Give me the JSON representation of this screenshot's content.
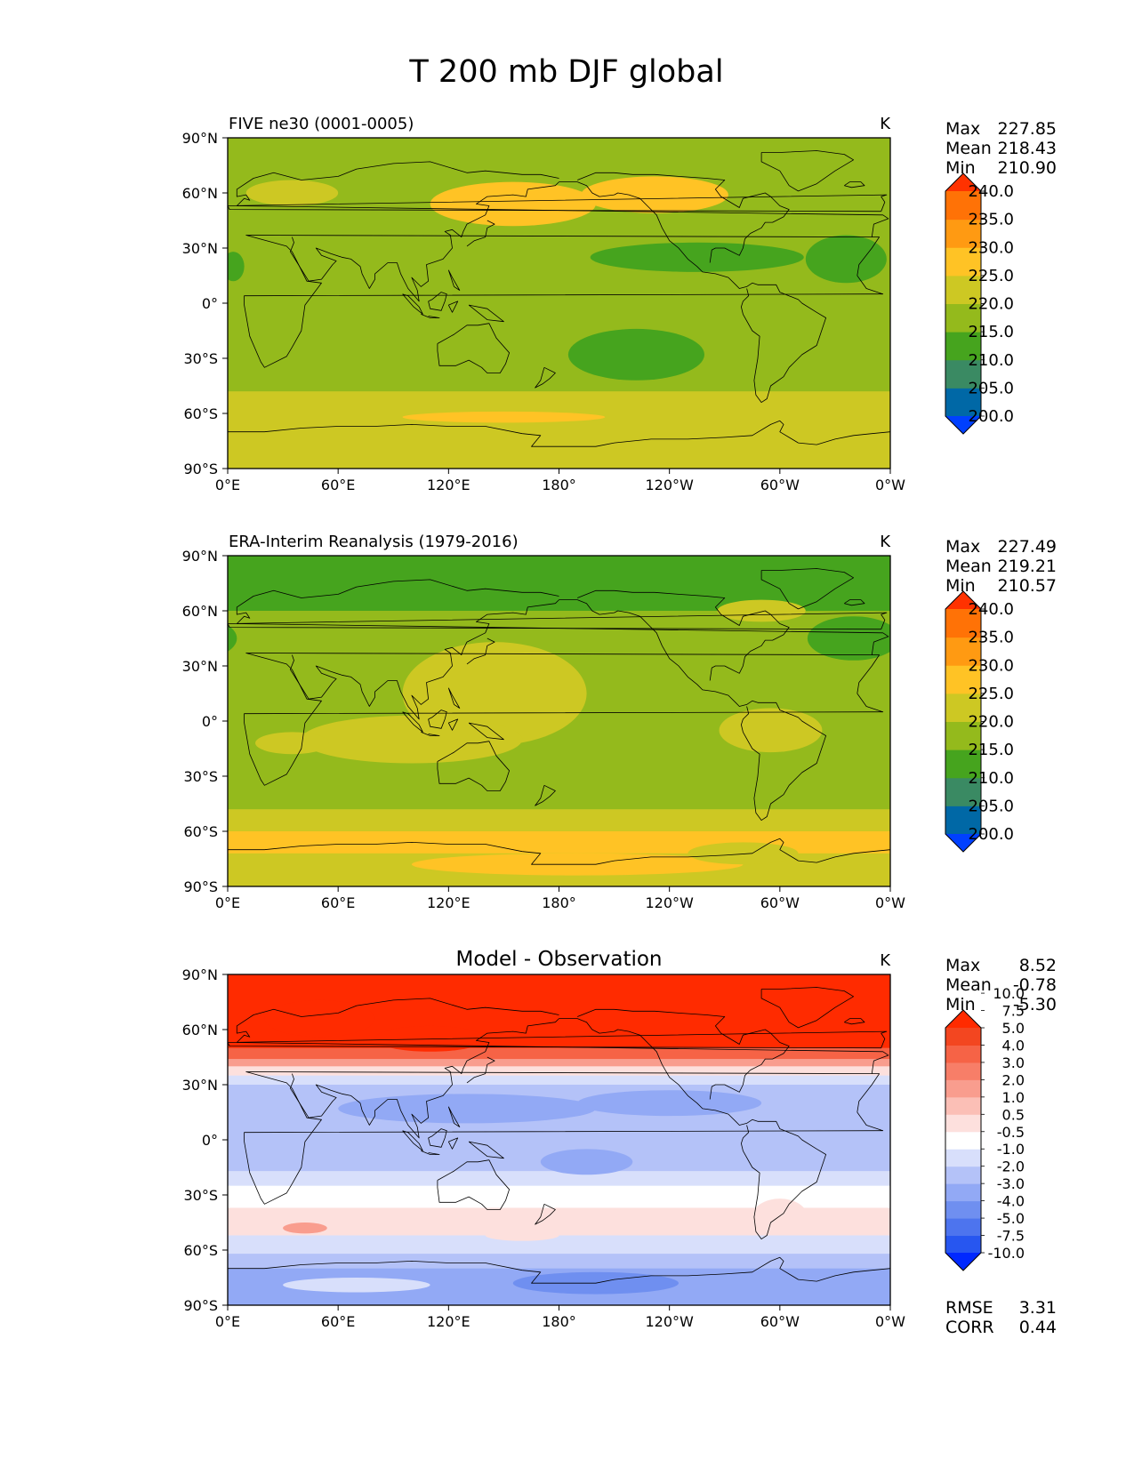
{
  "title": "T 200 mb DJF global",
  "xticks": [
    "0°E",
    "60°E",
    "120°E",
    "180°",
    "120°W",
    "60°W",
    "0°W"
  ],
  "yticks": [
    "90°N",
    "60°N",
    "30°N",
    "0°",
    "30°S",
    "60°S",
    "90°S"
  ],
  "units": "K",
  "colors": {
    "abs_levels": [
      "#0040ff",
      "#0068a6",
      "#3a8a63",
      "#46a41e",
      "#94ba1c",
      "#cdc823",
      "#ffc325",
      "#ff9a12",
      "#ff7206",
      "#ff3200"
    ],
    "diff_levels": [
      "#0028ff",
      "#2756f0",
      "#4d74ee",
      "#6f8ff0",
      "#92a9f5",
      "#b4c2f8",
      "#d8dffb",
      "#ffffff",
      "#fde0dd",
      "#fbbfb6",
      "#f99d8e",
      "#f77e68",
      "#f66346",
      "#f34620",
      "#ff2b00"
    ]
  },
  "chart_data": [
    {
      "type": "heatmap",
      "panel_title": "FIVE ne30 (0001-0005)",
      "units": "K",
      "stats": [
        {
          "label": "Max",
          "value": "227.85"
        },
        {
          "label": "Mean",
          "value": "218.43"
        },
        {
          "label": "Min",
          "value": "210.90"
        }
      ],
      "colorbar_labels": [
        "240.0",
        "235.0",
        "230.0",
        "225.0",
        "220.0",
        "215.0",
        "210.0",
        "205.0",
        "200.0"
      ],
      "colorbar_levels": [
        200,
        205,
        210,
        215,
        220,
        225,
        230,
        235,
        240
      ],
      "xlim": [
        0,
        360
      ],
      "ylim": [
        -90,
        90
      ],
      "bands": [
        {
          "lat": [
            90,
            68
          ],
          "value": 216.5
        },
        {
          "lat": [
            68,
            38
          ],
          "value": 219
        },
        {
          "lat": [
            38,
            -48
          ],
          "value": 216
        },
        {
          "lat": [
            -48,
            -90
          ],
          "value": 221.5
        }
      ],
      "blobs": [
        {
          "lon": 155,
          "lat": 54,
          "lon_r": 45,
          "lat_r": 12,
          "value": 226
        },
        {
          "lon": 232,
          "lat": 59,
          "lon_r": 40,
          "lat_r": 10,
          "value": 226
        },
        {
          "lon": 255,
          "lat": 25,
          "lon_r": 58,
          "lat_r": 8,
          "value": 213
        },
        {
          "lon": 336,
          "lat": 24,
          "lon_r": 22,
          "lat_r": 13,
          "value": 213
        },
        {
          "lon": 222,
          "lat": -28,
          "lon_r": 37,
          "lat_r": 14,
          "value": 213
        },
        {
          "lon": 150,
          "lat": -62,
          "lon_r": 55,
          "lat_r": 3,
          "value": 226
        },
        {
          "lon": 35,
          "lat": 60,
          "lon_r": 25,
          "lat_r": 7,
          "value": 221
        },
        {
          "lon": 3,
          "lat": 20,
          "lon_r": 6,
          "lat_r": 8,
          "value": 213
        }
      ]
    },
    {
      "type": "heatmap",
      "panel_title": "ERA-Interim Reanalysis (1979-2016)",
      "units": "K",
      "stats": [
        {
          "label": "Max",
          "value": "227.49"
        },
        {
          "label": "Mean",
          "value": "219.21"
        },
        {
          "label": "Min",
          "value": "210.57"
        }
      ],
      "colorbar_labels": [
        "240.0",
        "235.0",
        "230.0",
        "225.0",
        "220.0",
        "215.0",
        "210.0",
        "205.0",
        "200.0"
      ],
      "colorbar_levels": [
        200,
        205,
        210,
        215,
        220,
        225,
        230,
        235,
        240
      ],
      "xlim": [
        0,
        360
      ],
      "ylim": [
        -90,
        90
      ],
      "bands": [
        {
          "lat": [
            90,
            60
          ],
          "value": 213
        },
        {
          "lat": [
            60,
            42
          ],
          "value": 216
        },
        {
          "lat": [
            42,
            -48
          ],
          "value": 216.5
        },
        {
          "lat": [
            -48,
            -60
          ],
          "value": 221.5
        },
        {
          "lat": [
            -60,
            -72
          ],
          "value": 226
        },
        {
          "lat": [
            -72,
            -90
          ],
          "value": 222
        }
      ],
      "blobs": [
        {
          "lon": 145,
          "lat": 15,
          "lon_r": 50,
          "lat_r": 28,
          "value": 221
        },
        {
          "lon": 100,
          "lat": -10,
          "lon_r": 60,
          "lat_r": 13,
          "value": 221
        },
        {
          "lon": 35,
          "lat": -12,
          "lon_r": 20,
          "lat_r": 6,
          "value": 221
        },
        {
          "lon": 295,
          "lat": -5,
          "lon_r": 28,
          "lat_r": 12,
          "value": 221
        },
        {
          "lon": 290,
          "lat": 60,
          "lon_r": 24,
          "lat_r": 6,
          "value": 221
        },
        {
          "lon": 340,
          "lat": 45,
          "lon_r": 25,
          "lat_r": 12,
          "value": 213
        },
        {
          "lon": 190,
          "lat": -78,
          "lon_r": 90,
          "lat_r": 6,
          "value": 226
        },
        {
          "lon": 280,
          "lat": -72,
          "lon_r": 30,
          "lat_r": 6,
          "value": 221
        }
      ]
    },
    {
      "type": "heatmap",
      "panel_title": "Model - Observation",
      "units": "K",
      "stats": [
        {
          "label": "Max",
          "value": "8.52"
        },
        {
          "label": "Mean",
          "value": "-0.78"
        },
        {
          "label": "Min",
          "value": "-5.30"
        }
      ],
      "extra_stats": [
        {
          "label": "RMSE",
          "value": "3.31"
        },
        {
          "label": "CORR",
          "value": "0.44"
        }
      ],
      "colorbar_labels": [
        "10.0",
        "7.5",
        "5.0",
        "4.0",
        "3.0",
        "2.0",
        "1.0",
        "0.5",
        "-0.5",
        "-1.0",
        "-2.0",
        "-3.0",
        "-4.0",
        "-5.0",
        "-7.5",
        "-10.0"
      ],
      "colorbar_levels": [
        -10,
        -7.5,
        -5,
        -4,
        -3,
        -2,
        -1,
        -0.5,
        0.5,
        1,
        2,
        3,
        4,
        5,
        7.5,
        10
      ],
      "xlim": [
        0,
        360
      ],
      "ylim": [
        -90,
        90
      ],
      "bands": [
        {
          "lat": [
            90,
            50
          ],
          "value": 5.5
        },
        {
          "lat": [
            50,
            44
          ],
          "value": 3.5
        },
        {
          "lat": [
            44,
            40
          ],
          "value": 1.5
        },
        {
          "lat": [
            40,
            35
          ],
          "value": 0.2
        },
        {
          "lat": [
            35,
            30
          ],
          "value": -1.5
        },
        {
          "lat": [
            30,
            -17
          ],
          "value": -2.5
        },
        {
          "lat": [
            -17,
            -25
          ],
          "value": -1.5
        },
        {
          "lat": [
            -25,
            -37
          ],
          "value": -0.8
        },
        {
          "lat": [
            -37,
            -52
          ],
          "value": 0
        },
        {
          "lat": [
            -52,
            -62
          ],
          "value": -1.5
        },
        {
          "lat": [
            -62,
            -70
          ],
          "value": -2.5
        },
        {
          "lat": [
            -70,
            -90
          ],
          "value": -3.5
        }
      ],
      "blobs": [
        {
          "lon": 50,
          "lat": 66,
          "lon_r": 30,
          "lat_r": 10,
          "value": 8
        },
        {
          "lon": 110,
          "lat": 55,
          "lon_r": 30,
          "lat_r": 7,
          "value": 8
        },
        {
          "lon": 130,
          "lat": 17,
          "lon_r": 70,
          "lat_r": 8,
          "value": -3.5
        },
        {
          "lon": 240,
          "lat": 20,
          "lon_r": 50,
          "lat_r": 7,
          "value": -3.5
        },
        {
          "lon": 195,
          "lat": -12,
          "lon_r": 25,
          "lat_r": 7,
          "value": -3.5
        },
        {
          "lon": 42,
          "lat": -48,
          "lon_r": 12,
          "lat_r": 3,
          "value": 1
        },
        {
          "lon": 160,
          "lat": -52,
          "lon_r": 20,
          "lat_r": 3,
          "value": 0
        },
        {
          "lon": 300,
          "lat": -42,
          "lon_r": 15,
          "lat_r": 10,
          "value": 0
        },
        {
          "lon": 200,
          "lat": -78,
          "lon_r": 45,
          "lat_r": 6,
          "value": -5
        },
        {
          "lon": 70,
          "lat": -79,
          "lon_r": 40,
          "lat_r": 4,
          "value": -2
        }
      ]
    }
  ]
}
